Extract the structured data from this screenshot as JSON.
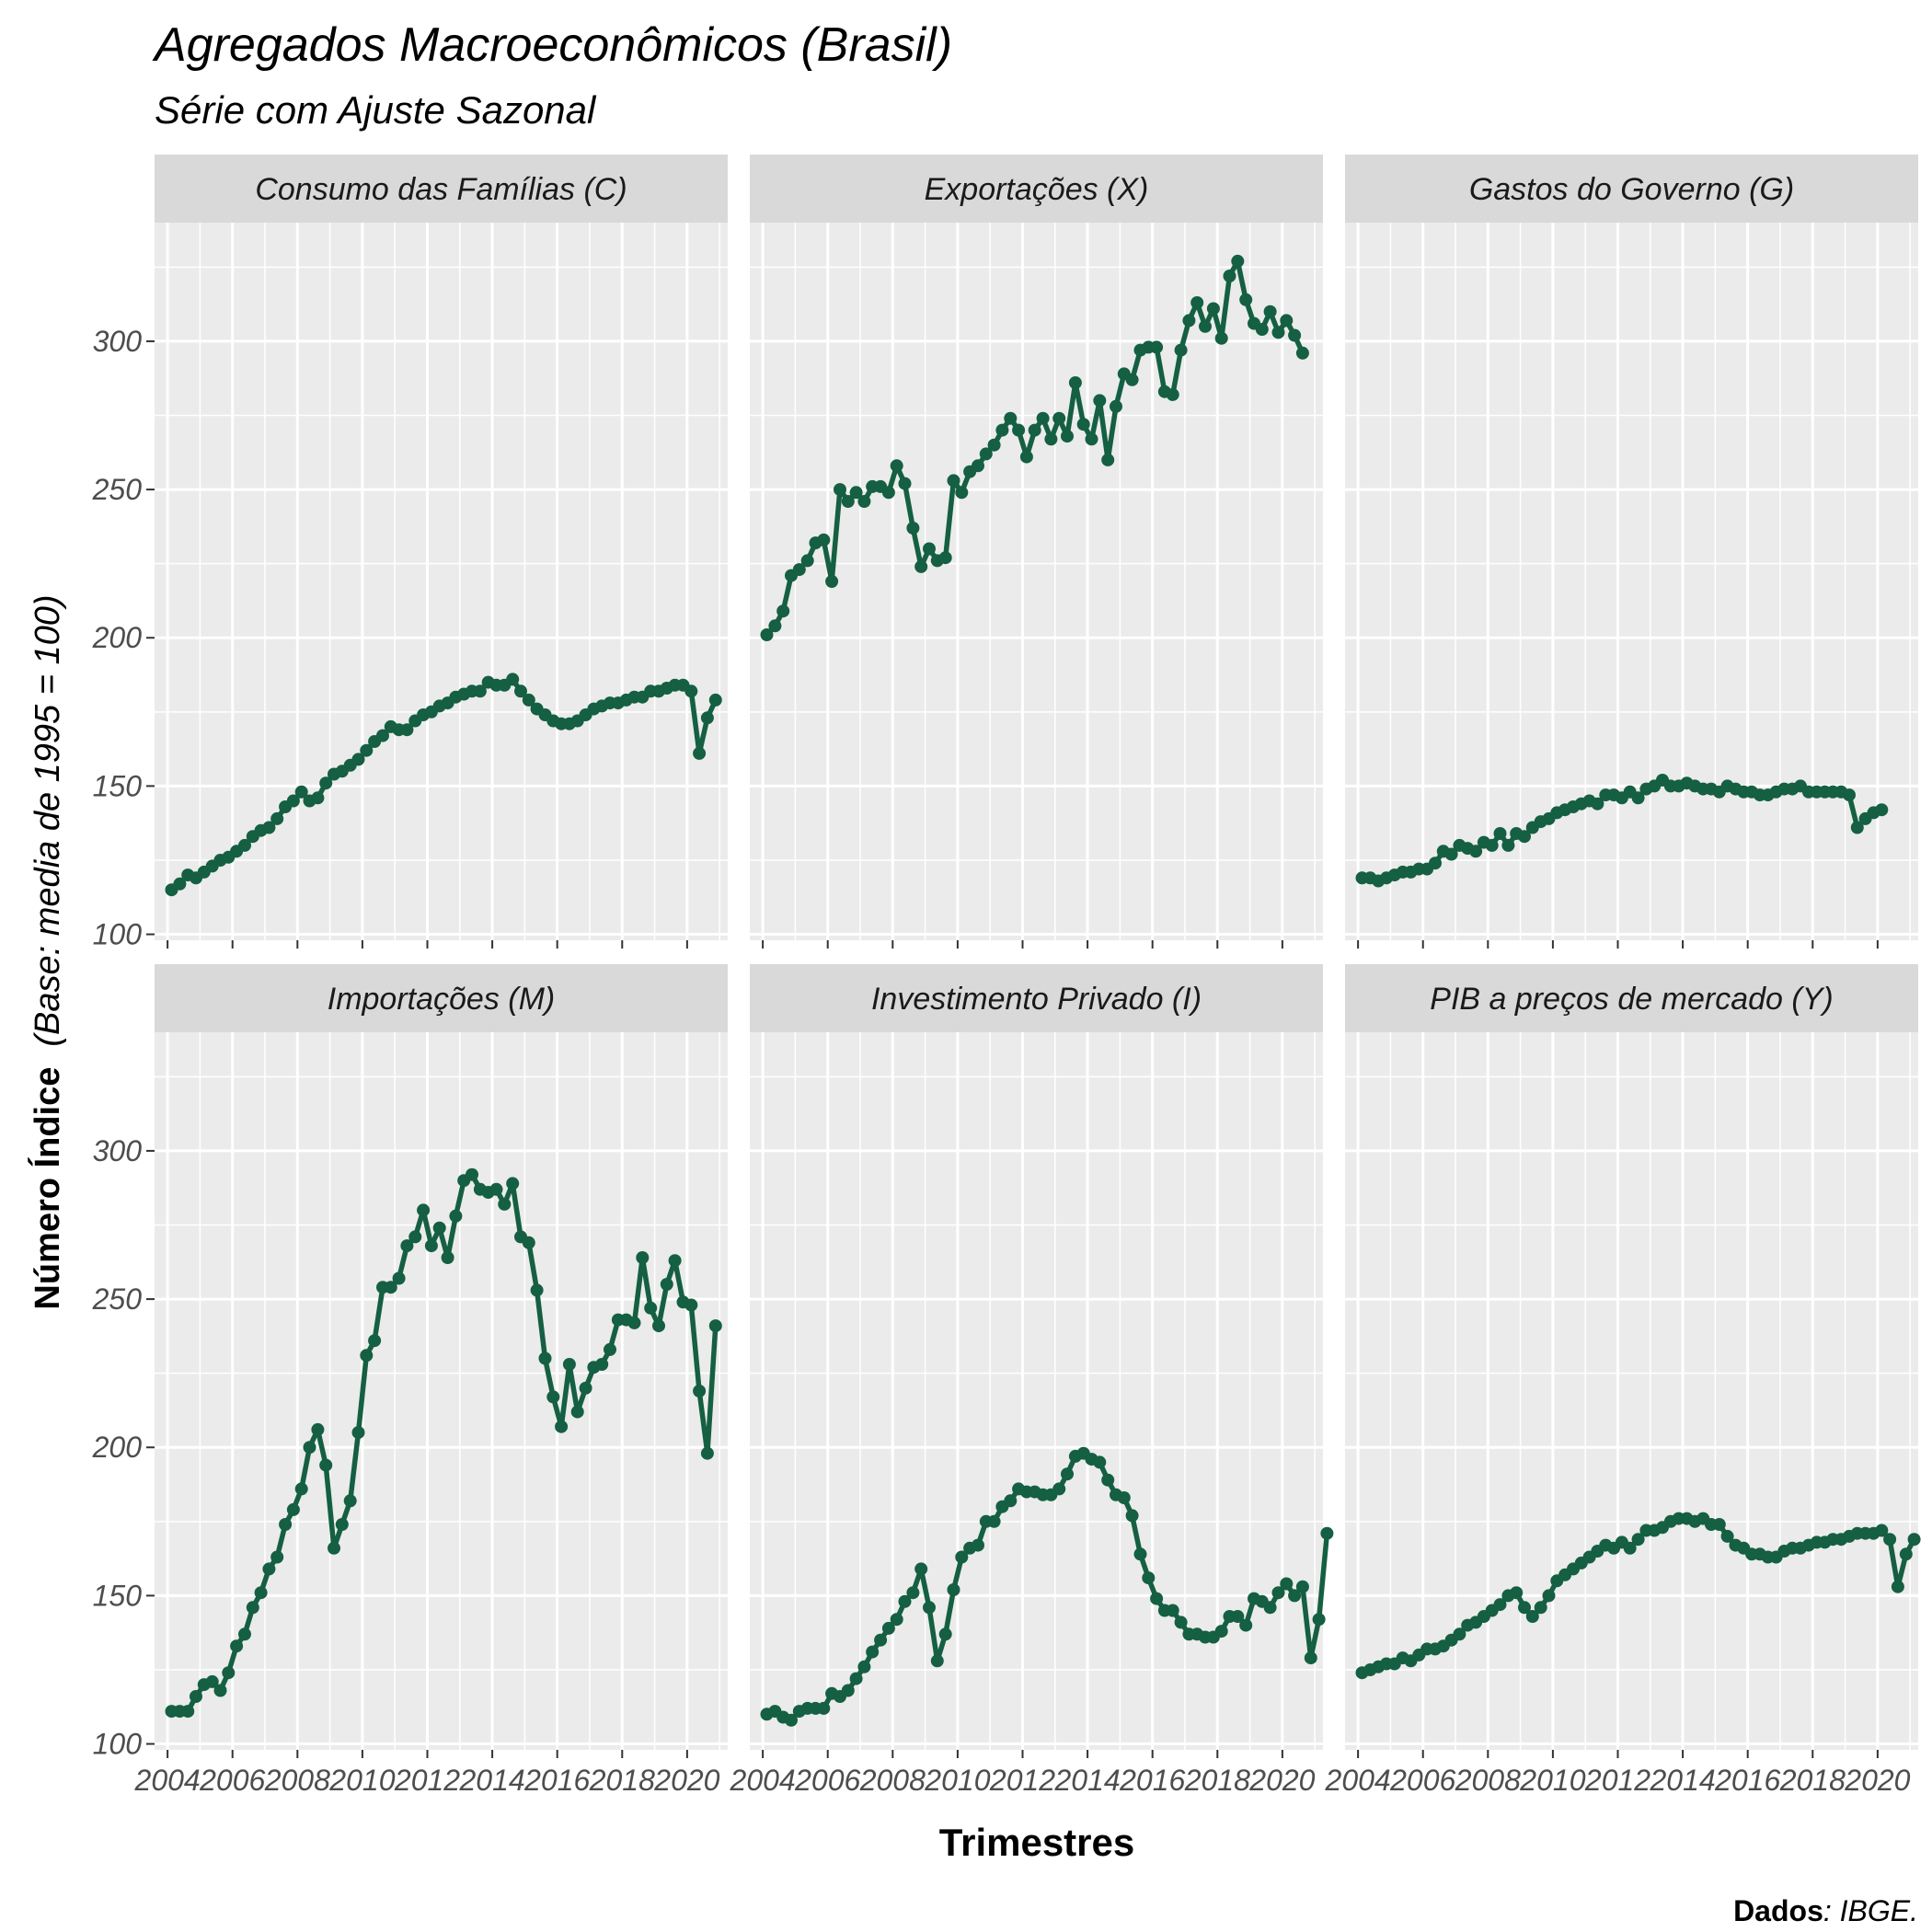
{
  "title": "Agregados Macroeconômicos   (Brasil)",
  "subtitle": "Série com Ajuste Sazonal",
  "xlabel": "Trimestres",
  "ylabel_main": "Número  Índice",
  "ylabel_sub": "(Base: media de 1995 = 100)",
  "caption": {
    "label": "Dados",
    "source": ": IBGE."
  },
  "colors": {
    "line": "#155f43",
    "panel_bg": "#ebebeb",
    "grid": "#ffffff",
    "strip_bg": "#d9d9d9",
    "axis_text": "#4d4d4d"
  },
  "chart_data": {
    "type": "line",
    "facet_layout": "2 rows x 3 columns, shared axes",
    "x_ticks": [
      2004,
      2006,
      2008,
      2010,
      2012,
      2014,
      2016,
      2018,
      2020
    ],
    "x_range": [
      2003.6,
      2021.25
    ],
    "y_ticks": [
      100,
      150,
      200,
      250,
      300
    ],
    "y_range": [
      98,
      340
    ],
    "grid": true,
    "markers": "points",
    "x_start": 2004.125,
    "x_step": 0.25,
    "panels": [
      {
        "name": "Consumo das Famílias (C)",
        "values": [
          115,
          117,
          120,
          119,
          121,
          123,
          125,
          126,
          128,
          130,
          133,
          135,
          136,
          139,
          143,
          145,
          148,
          145,
          146,
          151,
          154,
          155,
          157,
          159,
          162,
          165,
          167,
          170,
          169,
          169,
          172,
          174,
          175,
          177,
          178,
          180,
          181,
          182,
          182,
          185,
          184,
          184,
          186,
          182,
          179,
          176,
          174,
          172,
          171,
          171,
          172,
          174,
          176,
          177,
          178,
          178,
          179,
          180,
          180,
          182,
          182,
          183,
          184,
          184,
          182,
          161,
          173,
          179
        ]
      },
      {
        "name": "Exportações (X)",
        "values": [
          201,
          204,
          209,
          221,
          223,
          226,
          232,
          233,
          219,
          250,
          246,
          249,
          246,
          251,
          251,
          249,
          258,
          252,
          237,
          224,
          230,
          226,
          227,
          253,
          249,
          256,
          258,
          262,
          265,
          270,
          274,
          270,
          261,
          270,
          274,
          267,
          274,
          268,
          286,
          272,
          267,
          280,
          260,
          278,
          289,
          287,
          297,
          298,
          298,
          283,
          282,
          297,
          307,
          313,
          305,
          311,
          301,
          322,
          327,
          314,
          306,
          304,
          310,
          303,
          307,
          302,
          296
        ]
      },
      {
        "name": "Gastos do Governo (G)",
        "values": [
          119,
          119,
          118,
          119,
          120,
          121,
          121,
          122,
          122,
          124,
          128,
          127,
          130,
          129,
          128,
          131,
          130,
          134,
          130,
          134,
          133,
          136,
          138,
          139,
          141,
          142,
          143,
          144,
          145,
          144,
          147,
          147,
          146,
          148,
          146,
          149,
          150,
          152,
          150,
          150,
          151,
          150,
          149,
          149,
          148,
          150,
          149,
          148,
          148,
          147,
          147,
          148,
          149,
          149,
          150,
          148,
          148,
          148,
          148,
          148,
          147,
          136,
          139,
          141,
          142
        ]
      },
      {
        "name": "Importações (M)",
        "values": [
          111,
          111,
          111,
          116,
          120,
          121,
          118,
          124,
          133,
          137,
          146,
          151,
          159,
          163,
          174,
          179,
          186,
          200,
          206,
          194,
          166,
          174,
          182,
          205,
          231,
          236,
          254,
          254,
          257,
          268,
          271,
          280,
          268,
          274,
          264,
          278,
          290,
          292,
          287,
          286,
          287,
          282,
          289,
          271,
          269,
          253,
          230,
          217,
          207,
          228,
          212,
          220,
          227,
          228,
          233,
          243,
          243,
          242,
          264,
          247,
          241,
          255,
          263,
          249,
          248,
          219,
          198,
          241
        ]
      },
      {
        "name": "Investimento Privado (I)",
        "values": [
          110,
          111,
          109,
          108,
          111,
          112,
          112,
          112,
          117,
          116,
          118,
          122,
          126,
          131,
          135,
          139,
          142,
          148,
          151,
          159,
          146,
          128,
          137,
          152,
          163,
          166,
          167,
          175,
          175,
          180,
          182,
          186,
          185,
          185,
          184,
          184,
          186,
          191,
          197,
          198,
          196,
          195,
          189,
          184,
          183,
          177,
          164,
          156,
          149,
          145,
          145,
          141,
          137,
          137,
          136,
          136,
          138,
          143,
          143,
          140,
          149,
          148,
          146,
          151,
          154,
          150,
          153,
          129,
          142,
          171
        ]
      },
      {
        "name": "PIB a preços de mercado (Y)",
        "values": [
          124,
          125,
          126,
          127,
          127,
          129,
          128,
          130,
          132,
          132,
          133,
          135,
          137,
          140,
          141,
          143,
          145,
          147,
          150,
          151,
          146,
          143,
          146,
          150,
          155,
          157,
          159,
          161,
          163,
          165,
          167,
          166,
          168,
          166,
          169,
          172,
          172,
          173,
          175,
          176,
          176,
          175,
          176,
          174,
          174,
          170,
          167,
          166,
          164,
          164,
          163,
          163,
          165,
          166,
          166,
          167,
          168,
          168,
          169,
          169,
          170,
          171,
          171,
          171,
          172,
          169,
          153,
          164,
          169
        ]
      }
    ]
  }
}
